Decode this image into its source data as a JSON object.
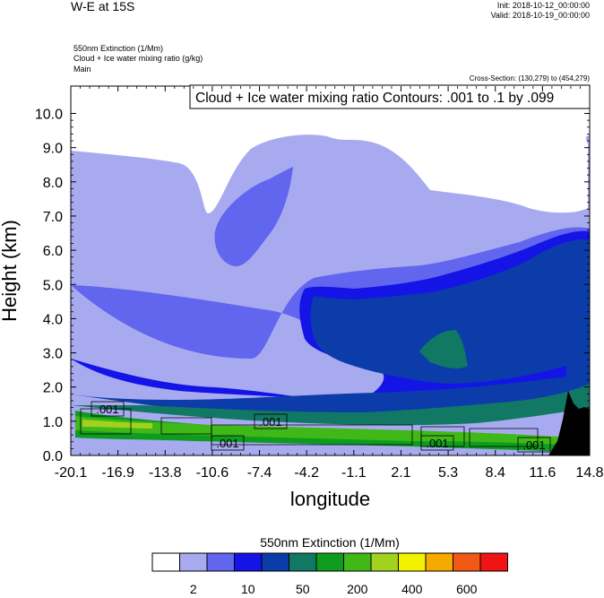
{
  "header": {
    "title": "W-E at 15S",
    "init": "Init: 2018-10-12_00:00:00",
    "valid": "Valid: 2018-10-19_00:00:00",
    "meta": [
      "550nm Extinction   (1/Mm)",
      "Cloud + Ice water mixing ratio   (g/kg)",
      "Main"
    ],
    "cross_section": "Cross-Section: (130,279) to (454,279)",
    "contour_note": "Cloud + Ice water mixing ratio Contours: .001 to .1 by .099"
  },
  "chart_data": {
    "type": "heatmap",
    "xlabel": "longitude",
    "ylabel": "Height (km)",
    "xlim": [
      -20.1,
      14.8
    ],
    "ylim": [
      0.0,
      10.8
    ],
    "x_ticks": [
      "-20.1",
      "-16.9",
      "-13.8",
      "-10.6",
      "-7.4",
      "-4.2",
      "-1.1",
      "2.1",
      "5.3",
      "8.4",
      "11.6",
      "14.8"
    ],
    "y_ticks": [
      "0.0",
      "1.0",
      "2.0",
      "3.0",
      "4.0",
      "5.0",
      "6.0",
      "7.0",
      "8.0",
      "9.0",
      "10.0"
    ],
    "y_tick_values": [
      0,
      1,
      2,
      3,
      4,
      5,
      6,
      7,
      8,
      9,
      10
    ],
    "colorbar": {
      "title": "550nm Extinction  (1/Mm)",
      "colors": [
        "#ffffff",
        "#a8aaf0",
        "#6265ee",
        "#1414e6",
        "#0c3caa",
        "#117864",
        "#0e9c1f",
        "#40b818",
        "#a2d21e",
        "#f2f200",
        "#f6aa00",
        "#f05a14",
        "#f01414"
      ],
      "labels": [
        "2",
        "10",
        "50",
        "200",
        "400",
        "600"
      ],
      "label_boundaries": [
        2,
        4,
        6,
        8,
        10,
        12
      ]
    },
    "contour_labels": [
      ".001",
      ".001",
      ".001",
      ".001",
      ".001"
    ],
    "terrain_color": "#000000"
  }
}
